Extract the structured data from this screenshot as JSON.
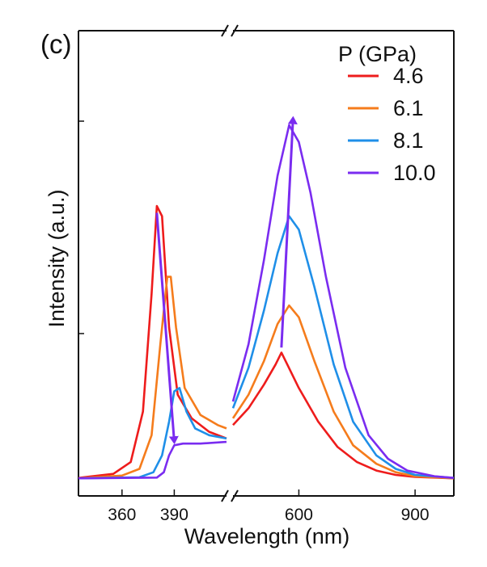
{
  "panel_label": "(c)",
  "chart_data": {
    "type": "line",
    "xlabel": "Wavelength (nm)",
    "ylabel": "Intensity (a.u.)",
    "legend": {
      "title": "P (GPa)",
      "position": "top-right"
    },
    "axis_break": {
      "left_range": [
        335,
        420
      ],
      "right_range": [
        430,
        1000
      ]
    },
    "xticks": [
      {
        "value": 360,
        "label": "360"
      },
      {
        "value": 390,
        "label": "390"
      },
      {
        "value": 600,
        "label": "600"
      },
      {
        "value": 900,
        "label": "900"
      }
    ],
    "ylim": [
      0,
      1.1
    ],
    "series": [
      {
        "name": "4.6",
        "color": "#ee1c1c",
        "left": [
          [
            335,
            0.003
          ],
          [
            355,
            0.015
          ],
          [
            365,
            0.05
          ],
          [
            372,
            0.2
          ],
          [
            377,
            0.55
          ],
          [
            380,
            0.81
          ],
          [
            383,
            0.78
          ],
          [
            387,
            0.45
          ],
          [
            392,
            0.25
          ],
          [
            400,
            0.18
          ],
          [
            410,
            0.14
          ],
          [
            420,
            0.12
          ]
        ],
        "right": [
          [
            430,
            0.16
          ],
          [
            470,
            0.21
          ],
          [
            510,
            0.28
          ],
          [
            540,
            0.34
          ],
          [
            555,
            0.375
          ],
          [
            570,
            0.34
          ],
          [
            600,
            0.27
          ],
          [
            650,
            0.17
          ],
          [
            700,
            0.095
          ],
          [
            750,
            0.05
          ],
          [
            800,
            0.025
          ],
          [
            850,
            0.012
          ],
          [
            900,
            0.006
          ],
          [
            1000,
            0.002
          ]
        ]
      },
      {
        "name": "6.1",
        "color": "#f57c1c",
        "left": [
          [
            335,
            0.002
          ],
          [
            360,
            0.01
          ],
          [
            370,
            0.03
          ],
          [
            377,
            0.13
          ],
          [
            382,
            0.4
          ],
          [
            386,
            0.6
          ],
          [
            388,
            0.6
          ],
          [
            391,
            0.45
          ],
          [
            396,
            0.27
          ],
          [
            405,
            0.19
          ],
          [
            415,
            0.16
          ],
          [
            420,
            0.15
          ]
        ],
        "right": [
          [
            430,
            0.18
          ],
          [
            470,
            0.25
          ],
          [
            510,
            0.35
          ],
          [
            545,
            0.46
          ],
          [
            575,
            0.515
          ],
          [
            600,
            0.48
          ],
          [
            640,
            0.35
          ],
          [
            690,
            0.2
          ],
          [
            740,
            0.1
          ],
          [
            800,
            0.045
          ],
          [
            850,
            0.02
          ],
          [
            900,
            0.008
          ],
          [
            1000,
            0.002
          ]
        ]
      },
      {
        "name": "8.1",
        "color": "#1f8fe8",
        "left": [
          [
            335,
            0.002
          ],
          [
            370,
            0.005
          ],
          [
            378,
            0.02
          ],
          [
            383,
            0.07
          ],
          [
            387,
            0.17
          ],
          [
            390,
            0.26
          ],
          [
            393,
            0.27
          ],
          [
            397,
            0.2
          ],
          [
            402,
            0.15
          ],
          [
            410,
            0.13
          ],
          [
            420,
            0.12
          ]
        ],
        "right": [
          [
            430,
            0.21
          ],
          [
            470,
            0.33
          ],
          [
            510,
            0.5
          ],
          [
            545,
            0.67
          ],
          [
            575,
            0.78
          ],
          [
            600,
            0.74
          ],
          [
            640,
            0.57
          ],
          [
            690,
            0.34
          ],
          [
            740,
            0.17
          ],
          [
            800,
            0.07
          ],
          [
            850,
            0.03
          ],
          [
            900,
            0.012
          ],
          [
            1000,
            0.003
          ]
        ]
      },
      {
        "name": "10.0",
        "color": "#7a2cf0",
        "left": [
          [
            335,
            0.002
          ],
          [
            380,
            0.004
          ],
          [
            384,
            0.02
          ],
          [
            387,
            0.07
          ],
          [
            390,
            0.1
          ],
          [
            395,
            0.105
          ],
          [
            405,
            0.105
          ],
          [
            420,
            0.11
          ]
        ],
        "right": [
          [
            430,
            0.23
          ],
          [
            470,
            0.4
          ],
          [
            510,
            0.65
          ],
          [
            545,
            0.9
          ],
          [
            575,
            1.05
          ],
          [
            600,
            1.0
          ],
          [
            630,
            0.85
          ],
          [
            670,
            0.6
          ],
          [
            720,
            0.33
          ],
          [
            780,
            0.13
          ],
          [
            830,
            0.06
          ],
          [
            880,
            0.025
          ],
          [
            950,
            0.008
          ],
          [
            1000,
            0.003
          ]
        ]
      }
    ],
    "annotations": [
      {
        "type": "arrow",
        "from": [
          380,
          0.79
        ],
        "to": [
          390,
          0.11
        ],
        "color": "#7a2cf0"
      },
      {
        "type": "arrow",
        "from": [
          555,
          0.39
        ],
        "to": [
          585,
          1.07
        ],
        "color": "#7a2cf0"
      }
    ]
  }
}
